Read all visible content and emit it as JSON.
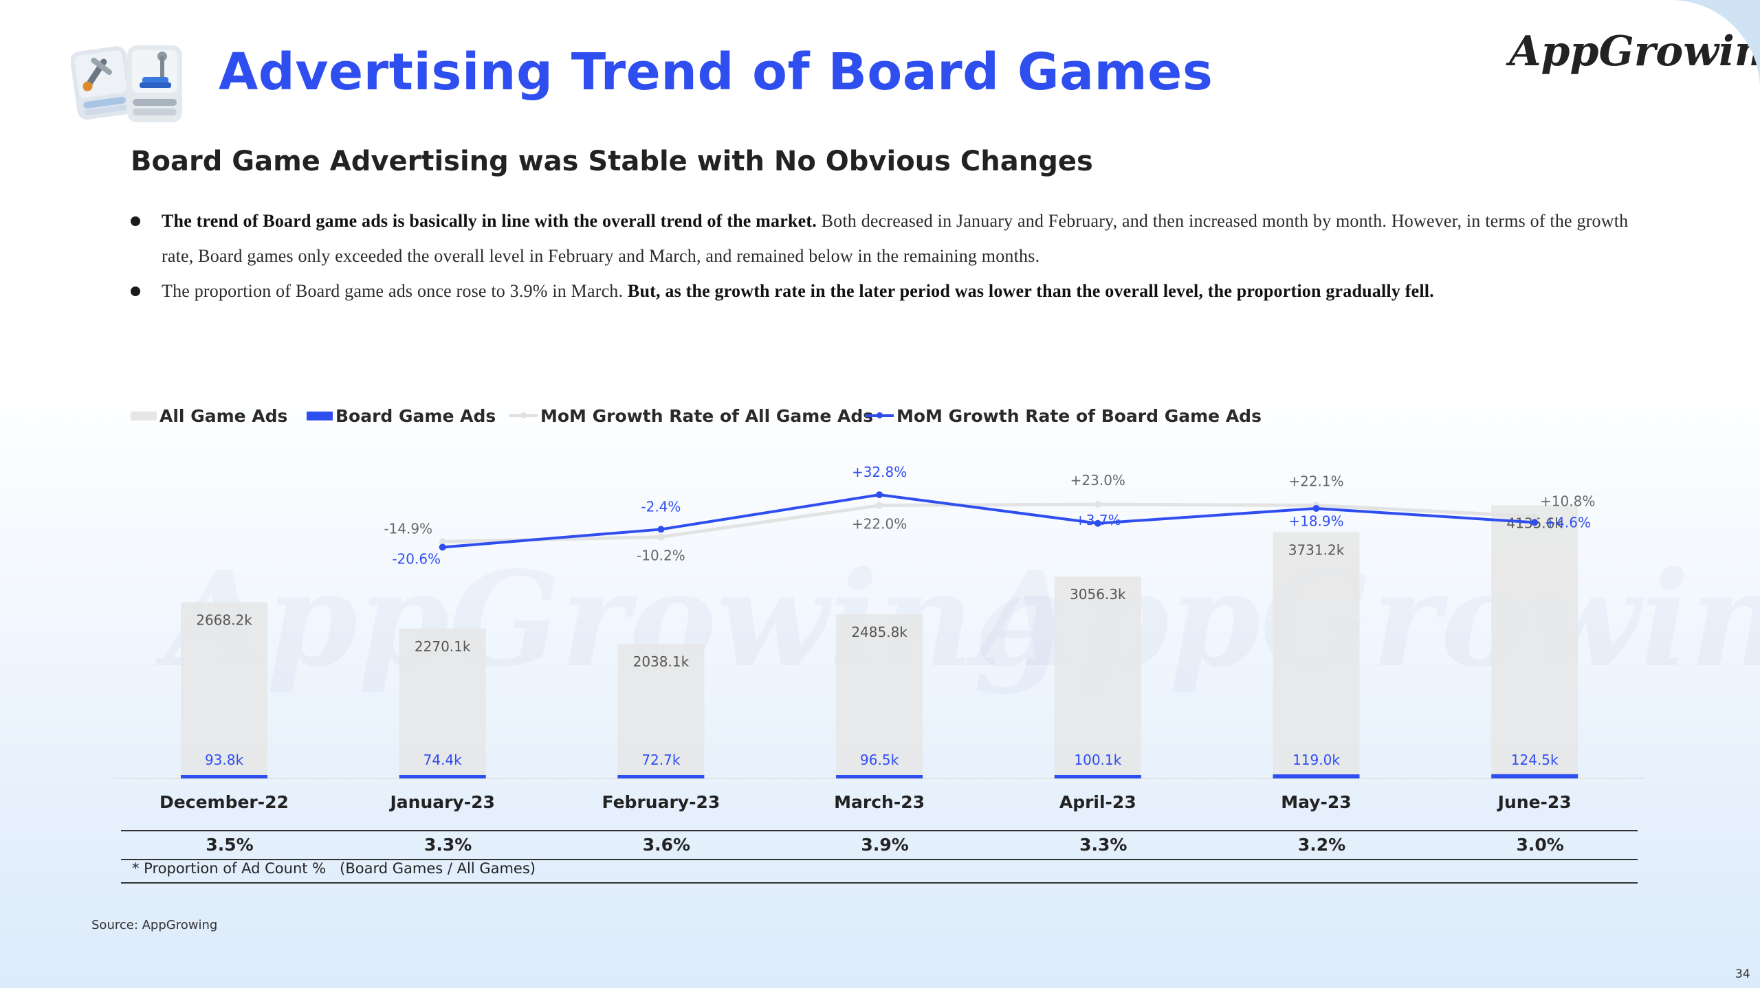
{
  "header": {
    "title": "Advertising Trend of Board Games",
    "logo_text": "AppGrowing",
    "subtitle": "Board Game Advertising was Stable with No Obvious Changes"
  },
  "bullets": [
    {
      "bold": "The trend of Board game ads is basically in line with the overall trend of the market.",
      "normal": " Both decreased in January and February, and then increased month by month. However, in terms of the growth rate, Board games only exceeded the overall level in February and March, and remained below in the remaining months."
    },
    {
      "normal": "The proportion of Board game ads once rose to 3.9% in March. ",
      "bold": "But, as the growth rate in the later period was lower than the overall level, the proportion gradually fell."
    }
  ],
  "colors": {
    "accent": "#2f4ef0",
    "all_bar": "#e6e6e6",
    "board_bar": "#2f4ef0",
    "all_line": "#e3e3e3",
    "board_line": "#2f4ef0"
  },
  "chart_data": {
    "type": "bar",
    "categories": [
      "December-22",
      "January-23",
      "February-23",
      "March-23",
      "April-23",
      "May-23",
      "June-23"
    ],
    "legend": [
      "All Game Ads",
      "Board Game Ads",
      "MoM Growth Rate of All Game Ads",
      "MoM Growth Rate of Board Game Ads"
    ],
    "legend_position": "top-left",
    "series": [
      {
        "name": "All Game Ads",
        "kind": "bar",
        "values": [
          2668.2,
          2270.1,
          2038.1,
          2485.8,
          3056.3,
          3731.2,
          4135.6
        ],
        "labels": [
          "2668.2k",
          "2270.1k",
          "2038.1k",
          "2485.8k",
          "3056.3k",
          "3731.2k",
          "4135.6k"
        ]
      },
      {
        "name": "Board Game Ads",
        "kind": "bar",
        "values": [
          93.8,
          74.4,
          72.7,
          96.5,
          100.1,
          119.0,
          124.5
        ],
        "labels": [
          "93.8k",
          "74.4k",
          "72.7k",
          "96.5k",
          "100.1k",
          "119.0k",
          "124.5k"
        ]
      },
      {
        "name": "MoM Growth Rate of All Game Ads",
        "kind": "line",
        "values": [
          null,
          -14.9,
          -10.2,
          22.0,
          23.0,
          22.1,
          10.8
        ],
        "labels": [
          "",
          "-14.9%",
          "-10.2%",
          "+22.0%",
          "+23.0%",
          "+22.1%",
          "+10.8%"
        ]
      },
      {
        "name": "MoM Growth Rate of Board Game Ads",
        "kind": "line",
        "values": [
          null,
          -20.6,
          -2.4,
          32.8,
          3.7,
          18.9,
          4.6
        ],
        "labels": [
          "",
          "-20.6%",
          "-2.4%",
          "+32.8%",
          "+3.7%",
          "+18.9%",
          "+4.6%"
        ]
      }
    ],
    "proportion": {
      "values": [
        "3.5%",
        "3.3%",
        "3.6%",
        "3.9%",
        "3.3%",
        "3.2%",
        "3.0%"
      ],
      "note": "* Proportion of Ad Count %   (Board Games / All Games)"
    }
  },
  "footer": {
    "source": "Source: AppGrowing",
    "page": "34"
  }
}
